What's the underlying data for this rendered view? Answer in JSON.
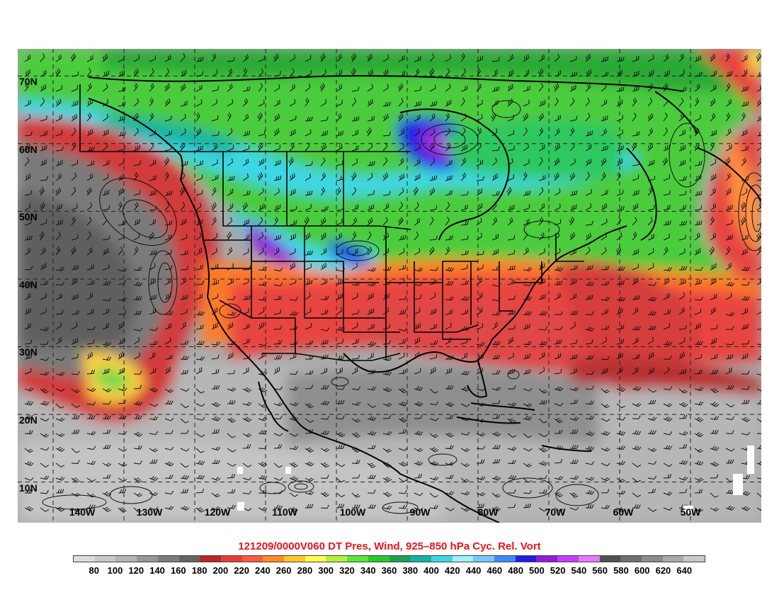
{
  "figure": {
    "title": "121209/0000V060 DT Pres, Wind, 925–850 hPa Cyc. Rel. Vort",
    "title_color": "#e8141a"
  },
  "axes": {
    "lat_labels": [
      "70N",
      "60N",
      "50N",
      "40N",
      "30N",
      "20N",
      "10N"
    ],
    "lon_labels": [
      "140W",
      "130W",
      "120W",
      "110W",
      "100W",
      "90W",
      "80W",
      "70W",
      "60W",
      "50W"
    ]
  },
  "colorbar": {
    "tick_labels": [
      "80",
      "100",
      "120",
      "140",
      "160",
      "180",
      "200",
      "220",
      "240",
      "260",
      "280",
      "300",
      "320",
      "340",
      "360",
      "380",
      "400",
      "420",
      "440",
      "460",
      "480",
      "500",
      "520",
      "540",
      "560",
      "580",
      "600",
      "620",
      "640"
    ],
    "colors": [
      "#dcdcdc",
      "#c8c8c8",
      "#b4b4b4",
      "#969696",
      "#7d7d7d",
      "#646464",
      "#b42828",
      "#e63c3c",
      "#ff5a3c",
      "#ff8c28",
      "#ffc828",
      "#ffff50",
      "#b4f03c",
      "#5ae63c",
      "#28c828",
      "#1ea050",
      "#14b4a0",
      "#3cd7e6",
      "#a0f0ff",
      "#78c8ff",
      "#3c8cff",
      "#1e1ee6",
      "#8c1edc",
      "#c83cff",
      "#e678ff",
      "#505050",
      "#6e6e6e",
      "#8c8c8c",
      "#aaaaaa",
      "#c8c8c8"
    ]
  },
  "chart_data": {
    "type": "heatmap",
    "title": "121209/0000V060 DT Pres, Wind, 925–850 hPa Cyc. Rel. Vort",
    "projection": "latitude-longitude",
    "lat_range": [
      4,
      74
    ],
    "lon_range": [
      -145,
      -40
    ],
    "lat_ticks": [
      70,
      60,
      50,
      40,
      30,
      20,
      10
    ],
    "lon_ticks": [
      -140,
      -130,
      -120,
      -110,
      -100,
      -90,
      -80,
      -70,
      -60,
      -50
    ],
    "variables": {
      "shading": "DT pressure (hPa)",
      "barbs": "Wind",
      "contours": "925–850 hPa cyclonic relative vorticity"
    },
    "colorbar_levels": [
      80,
      100,
      120,
      140,
      160,
      180,
      200,
      220,
      240,
      260,
      280,
      300,
      320,
      340,
      360,
      380,
      400,
      420,
      440,
      460,
      480,
      500,
      520,
      540,
      560,
      580,
      600,
      620,
      640
    ],
    "grid": "dashed",
    "legend_placement": "bottom"
  }
}
